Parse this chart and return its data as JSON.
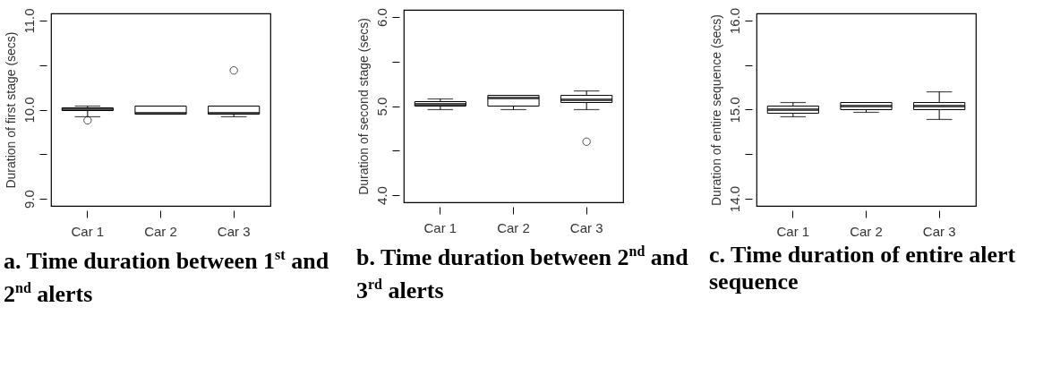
{
  "chart_data": [
    {
      "type": "box",
      "title": "a. Time duration between 1$^{st}$ and 2$^{nd}$ alerts",
      "ylabel": "Duration of first stage (secs)",
      "categories": [
        "Car 1",
        "Car 2",
        "Car 3"
      ],
      "boxes": [
        {
          "low": 9.92,
          "q1": 9.99,
          "median": 10.0,
          "q3": 10.02,
          "high": 10.04,
          "outliers": [
            9.88
          ]
        },
        {
          "low": 9.95,
          "q1": 9.95,
          "median": 9.96,
          "q3": 10.04,
          "high": 10.04
        },
        {
          "low": 9.92,
          "q1": 9.95,
          "median": 9.96,
          "q3": 10.04,
          "high": 10.04,
          "outliers": [
            10.44
          ]
        }
      ],
      "ylim": [
        8.92,
        11.08
      ],
      "yticks": [
        {
          "value": 9,
          "label": "9.0"
        },
        {
          "value": 9.5,
          "label": null
        },
        {
          "value": 10,
          "label": "10.0"
        },
        {
          "value": 10.5,
          "label": null
        },
        {
          "value": 11,
          "label": "11.0"
        }
      ]
    },
    {
      "type": "box",
      "title": "b. Time duration between 2$^{nd}$ and 3$^{rd}$ alerts",
      "ylabel": "Duration of second stage (secs)",
      "categories": [
        "Car 1",
        "Car 2",
        "Car 3"
      ],
      "boxes": [
        {
          "low": 4.96,
          "q1": 5.0,
          "median": 5.02,
          "q3": 5.05,
          "high": 5.08
        },
        {
          "low": 4.96,
          "q1": 5.0,
          "median": 5.09,
          "q3": 5.12,
          "high": 5.12
        },
        {
          "low": 4.96,
          "q1": 5.04,
          "median": 5.07,
          "q3": 5.12,
          "high": 5.17,
          "outliers": [
            4.6
          ]
        }
      ],
      "ylim": [
        3.92,
        6.08
      ],
      "yticks": [
        {
          "value": 4,
          "label": "4.0"
        },
        {
          "value": 4.5,
          "label": null
        },
        {
          "value": 5,
          "label": "5.0"
        },
        {
          "value": 5.5,
          "label": null
        },
        {
          "value": 6,
          "label": "6.0"
        }
      ]
    },
    {
      "type": "box",
      "title": "c. Time duration of entire alert sequence",
      "ylabel": "Duration of entire sequence (secs)",
      "categories": [
        "Car 1",
        "Car 2",
        "Car 3"
      ],
      "boxes": [
        {
          "low": 14.92,
          "q1": 14.96,
          "median": 15.0,
          "q3": 15.04,
          "high": 15.08
        },
        {
          "low": 14.97,
          "q1": 15.0,
          "median": 15.04,
          "q3": 15.08,
          "high": 15.08
        },
        {
          "low": 14.89,
          "q1": 15.0,
          "median": 15.04,
          "q3": 15.08,
          "high": 15.2
        }
      ],
      "ylim": [
        13.92,
        16.08
      ],
      "yticks": [
        {
          "value": 14,
          "label": "14.0"
        },
        {
          "value": 14.5,
          "label": null
        },
        {
          "value": 15,
          "label": "15.0"
        },
        {
          "value": 15.5,
          "label": null
        },
        {
          "value": 16,
          "label": "16.0"
        }
      ]
    }
  ]
}
